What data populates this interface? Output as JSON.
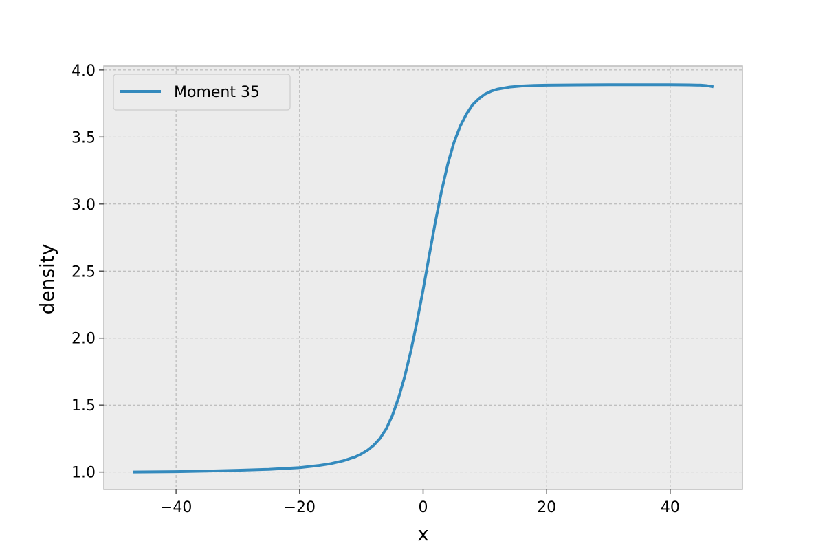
{
  "chart_data": {
    "type": "line",
    "xlabel": "x",
    "ylabel": "density",
    "xlim": [
      -51.7,
      51.7
    ],
    "ylim": [
      0.87,
      4.03
    ],
    "xticks": [
      -40,
      -20,
      0,
      20,
      40
    ],
    "xtick_labels": [
      "−40",
      "−20",
      "0",
      "20",
      "40"
    ],
    "yticks": [
      1.0,
      1.5,
      2.0,
      2.5,
      3.0,
      3.5,
      4.0
    ],
    "ytick_labels": [
      "1.0",
      "1.5",
      "2.0",
      "2.5",
      "3.0",
      "3.5",
      "4.0"
    ],
    "grid": true,
    "legend_position": "upper-left",
    "colors": {
      "plot_background": "#ececec",
      "grid": "#b0b0b0",
      "spine": "#bcbcbc",
      "line": "#348abd"
    },
    "series": [
      {
        "name": "Moment 35",
        "x": [
          -47,
          -40,
          -35,
          -30,
          -25,
          -20,
          -17,
          -15,
          -13,
          -11,
          -10,
          -9,
          -8,
          -7,
          -6,
          -5,
          -4,
          -3,
          -2,
          -1,
          0,
          1,
          2,
          3,
          4,
          5,
          6,
          7,
          8,
          9,
          10,
          11,
          12,
          14,
          16,
          18,
          20,
          25,
          30,
          35,
          40,
          43,
          45,
          46,
          47
        ],
        "y": [
          1.0,
          1.003,
          1.007,
          1.013,
          1.02,
          1.033,
          1.048,
          1.062,
          1.083,
          1.113,
          1.135,
          1.163,
          1.2,
          1.25,
          1.32,
          1.42,
          1.55,
          1.71,
          1.9,
          2.12,
          2.36,
          2.62,
          2.87,
          3.1,
          3.3,
          3.46,
          3.58,
          3.67,
          3.74,
          3.785,
          3.82,
          3.842,
          3.857,
          3.873,
          3.881,
          3.885,
          3.887,
          3.889,
          3.89,
          3.89,
          3.89,
          3.889,
          3.887,
          3.883,
          3.875
        ]
      }
    ]
  }
}
